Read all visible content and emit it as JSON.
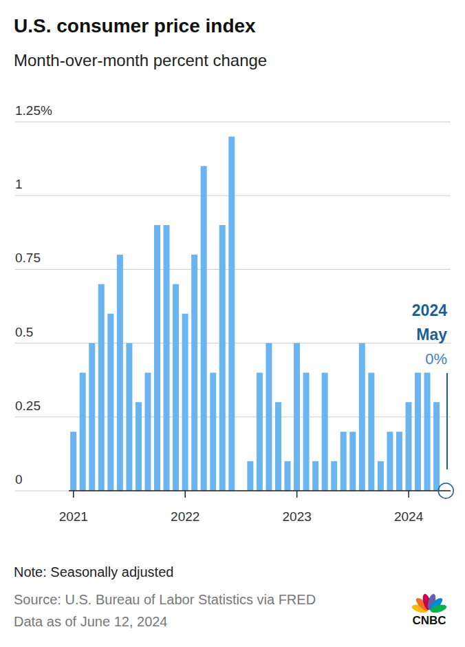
{
  "chart_data": {
    "type": "bar",
    "title": "U.S. consumer price index",
    "subtitle": "Month-over-month percent change",
    "categories": [
      "2021",
      null,
      null,
      null,
      null,
      null,
      null,
      null,
      null,
      null,
      null,
      null,
      "2022",
      null,
      null,
      null,
      null,
      null,
      null,
      null,
      null,
      null,
      null,
      null,
      "2023",
      null,
      null,
      null,
      null,
      null,
      null,
      null,
      null,
      null,
      null,
      null,
      "2024",
      null,
      null,
      null,
      null
    ],
    "values": [
      0.2,
      0.4,
      0.5,
      0.7,
      0.6,
      0.8,
      0.5,
      0.3,
      0.4,
      0.9,
      0.9,
      0.7,
      0.6,
      0.8,
      1.1,
      0.4,
      0.9,
      1.2,
      0,
      0.1,
      0.4,
      0.5,
      0.3,
      0.1,
      0.5,
      0.4,
      0.1,
      0.4,
      0.1,
      0.2,
      0.2,
      0.5,
      0.4,
      0.1,
      0.2,
      0.2,
      0.3,
      0.4,
      0.4,
      0.3,
      0
    ],
    "color": "#6ab4f0",
    "ylim": [
      0,
      1.25
    ],
    "yticks": [
      0,
      0.25,
      0.5,
      0.75,
      1,
      {
        "value": 1.25,
        "label": "1.25%"
      }
    ],
    "grid": true,
    "annotation": {
      "title": [
        "2024",
        "May"
      ],
      "text": "0%"
    },
    "note": "Note: Seasonally adjusted",
    "source": "Source: U.S. Bureau of Labor Statistics via FRED",
    "date": "Data as of June 12, 2024",
    "logo": "CNBC"
  }
}
